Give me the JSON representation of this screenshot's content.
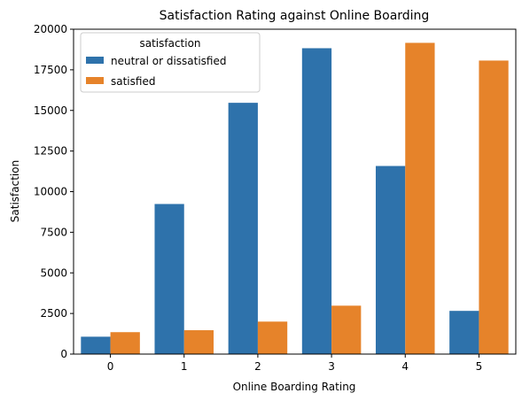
{
  "chart_data": {
    "type": "bar",
    "title": "Satisfaction Rating against Online Boarding",
    "xlabel": "Online Boarding Rating",
    "ylabel": "Satisfaction",
    "categories": [
      "0",
      "1",
      "2",
      "3",
      "4",
      "5"
    ],
    "series": [
      {
        "name": "neutral or dissatisfied",
        "color": "#2e72ab",
        "values": [
          1070,
          9240,
          15470,
          18830,
          11580,
          2660
        ]
      },
      {
        "name": "satisfied",
        "color": "#e6832a",
        "values": [
          1350,
          1470,
          2000,
          2980,
          19160,
          18070
        ]
      }
    ],
    "ylim": [
      0,
      20000
    ],
    "yticks": [
      "0",
      "2500",
      "5000",
      "7500",
      "10000",
      "12500",
      "15000",
      "17500",
      "20000"
    ],
    "grid": false,
    "legend": {
      "title": "satisfaction",
      "placement": "top-left"
    }
  }
}
